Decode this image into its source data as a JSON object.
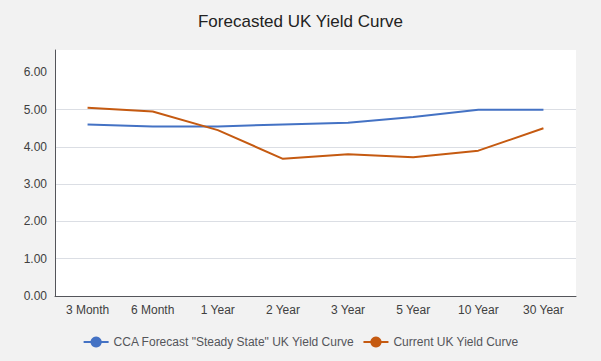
{
  "chart_data": {
    "type": "line",
    "title": "Forecasted UK Yield Curve",
    "categories": [
      "3 Month",
      "6 Month",
      "1 Year",
      "2 Year",
      "3 Year",
      "5 Year",
      "10 Year",
      "30 Year"
    ],
    "series": [
      {
        "name": "CCA Forecast \"Steady State\" UK Yield Curve",
        "color": "#4472C4",
        "values": [
          4.6,
          4.55,
          4.55,
          4.6,
          4.65,
          4.8,
          5.0,
          5.0
        ]
      },
      {
        "name": "Current UK Yield Curve",
        "color": "#C55A11",
        "values": [
          5.05,
          4.95,
          4.45,
          3.68,
          3.8,
          3.72,
          3.9,
          4.5
        ]
      }
    ],
    "ylim": [
      0.0,
      6.6
    ],
    "yticks": [
      {
        "value": 0,
        "label": "0.00"
      },
      {
        "value": 1,
        "label": "1.00"
      },
      {
        "value": 2,
        "label": "2.00"
      },
      {
        "value": 3,
        "label": "3.00"
      },
      {
        "value": 4,
        "label": "4.00"
      },
      {
        "value": 5,
        "label": "5.00"
      },
      {
        "value": 6,
        "label": "6.00"
      }
    ],
    "grid": true,
    "legend": "bottom"
  }
}
